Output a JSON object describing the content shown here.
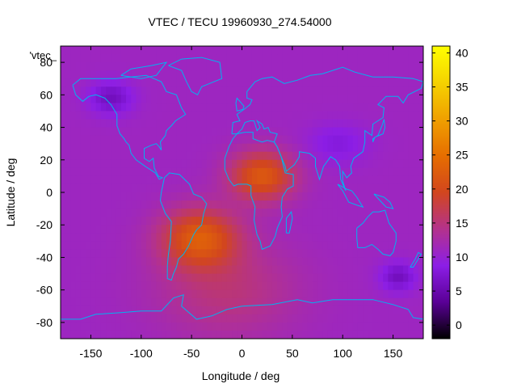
{
  "chart_data": {
    "type": "heatmap",
    "title": "VTEC / TECU 19960930_274.54000",
    "xlabel": "Longitude / deg",
    "ylabel": "Latitude / deg",
    "series_label": "'vtec_",
    "xlim": [
      -180,
      180
    ],
    "ylim": [
      -90,
      90
    ],
    "xticks": [
      -150,
      -100,
      -50,
      0,
      50,
      100,
      150
    ],
    "yticks": [
      -80,
      -60,
      -40,
      -20,
      0,
      20,
      40,
      60,
      80
    ],
    "colorbar": {
      "range": [
        -2,
        41
      ],
      "ticks": [
        0,
        5,
        10,
        15,
        20,
        25,
        30,
        35,
        40
      ],
      "palette": [
        "#000000",
        "#5a0096",
        "#8c1ee6",
        "#b4328c",
        "#d2461e",
        "#e66e00",
        "#f0a000",
        "#f5d200",
        "#ffff00"
      ]
    },
    "field": {
      "background": 11,
      "features": [
        {
          "lon": 20,
          "lat": 10,
          "rlon": 32,
          "rlat": 15,
          "amp": 11
        },
        {
          "lon": -42,
          "lat": -28,
          "rlon": 38,
          "rlat": 18,
          "amp": 11
        },
        {
          "lon": -15,
          "lat": -60,
          "rlon": 70,
          "rlat": 30,
          "amp": 4
        },
        {
          "lon": -130,
          "lat": 58,
          "rlon": 22,
          "rlat": 10,
          "amp": -5
        },
        {
          "lon": 155,
          "lat": -52,
          "rlon": 18,
          "rlat": 9,
          "amp": -5
        },
        {
          "lon": 95,
          "lat": 30,
          "rlon": 30,
          "rlat": 12,
          "amp": -3
        }
      ]
    },
    "colors": {
      "coastline": "#00b4f0"
    }
  }
}
